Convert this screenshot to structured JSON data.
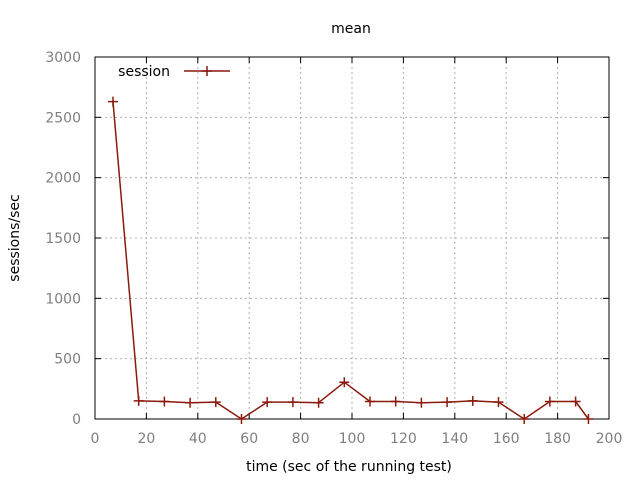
{
  "chart_data": {
    "type": "line",
    "title": "mean",
    "xlabel": "time (sec of the running test)",
    "ylabel": "sessions/sec",
    "xlim": [
      0,
      200
    ],
    "ylim": [
      0,
      3000
    ],
    "xticks": [
      0,
      20,
      40,
      60,
      80,
      100,
      120,
      140,
      160,
      180,
      200
    ],
    "yticks": [
      0,
      500,
      1000,
      1500,
      2000,
      2500,
      3000
    ],
    "grid": true,
    "legend_position": "top-left",
    "series": [
      {
        "name": "session",
        "color": "#8b1a0e",
        "marker": "plus",
        "x": [
          7,
          17,
          27,
          37,
          47,
          57,
          67,
          77,
          87,
          97,
          107,
          117,
          127,
          137,
          147,
          157,
          167,
          177,
          187,
          192
        ],
        "y": [
          2630,
          150,
          145,
          135,
          140,
          0,
          140,
          140,
          135,
          305,
          145,
          145,
          135,
          140,
          150,
          140,
          0,
          145,
          145,
          0
        ]
      }
    ]
  }
}
